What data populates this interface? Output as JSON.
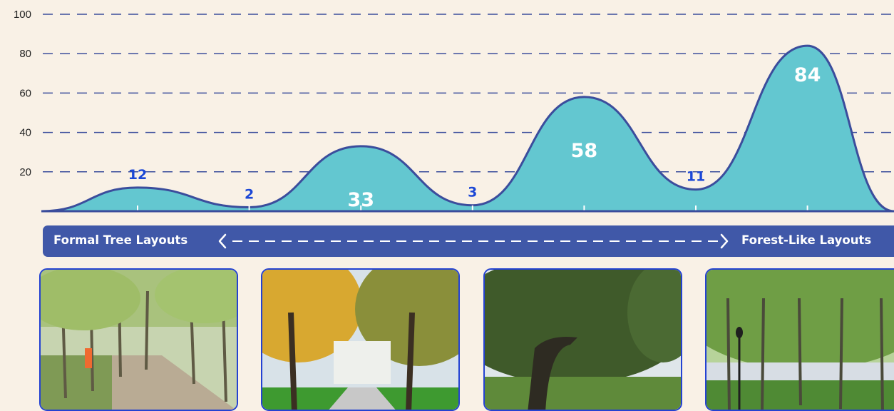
{
  "chart_data": {
    "type": "area",
    "x": [
      1,
      2,
      3,
      4,
      5,
      6,
      7
    ],
    "values": [
      12,
      2,
      33,
      3,
      58,
      11,
      84
    ],
    "value_labels": [
      "12",
      "2",
      "33",
      "3",
      "58",
      "11",
      "84"
    ],
    "yticks": [
      "20",
      "40",
      "60",
      "80",
      "100"
    ],
    "ylim": [
      0,
      100
    ],
    "grid": true,
    "colors": {
      "fill": "#63c7d0",
      "line": "#3b4d9c",
      "grid": "#3b4d9c",
      "label_out": "#1b47d6",
      "label_in": "#ffffff"
    }
  },
  "scale": {
    "left_label": "Formal Tree Layouts",
    "right_label": "Forest-Like Layouts",
    "color": "#4058a8"
  },
  "photos": [
    {
      "name": "photo-formal-allee",
      "subject": "straight rows of young trees along a gravel path with a jogger and dog"
    },
    {
      "name": "photo-autumn-avenue",
      "subject": "tree-lined avenue with yellow autumn foliage and a white building"
    },
    {
      "name": "photo-oak-grove",
      "subject": "large spreading live oak trees over a grassy slope"
    },
    {
      "name": "photo-urban-forest",
      "subject": "dense forest-like park with lamp posts and a waterfront"
    }
  ]
}
